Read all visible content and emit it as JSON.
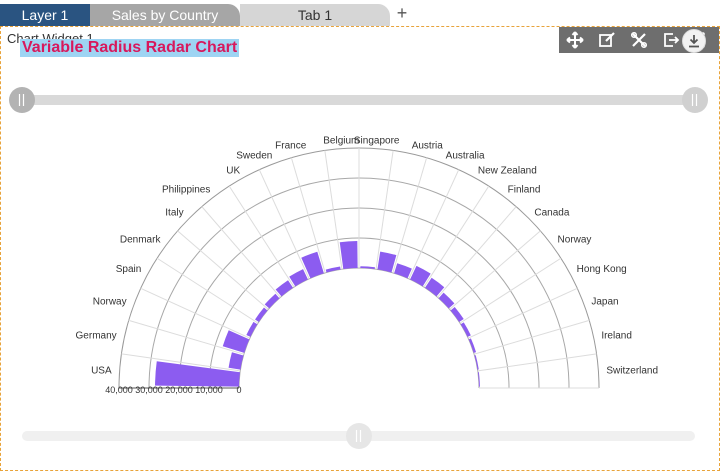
{
  "tabs": [
    {
      "label": "Layer 1"
    },
    {
      "label": "Sales by Country"
    },
    {
      "label": "Tab 1"
    }
  ],
  "add_tab_label": "+",
  "widget": {
    "title": "Chart Widget 1",
    "toolbar_icons": [
      "move-icon",
      "edit-icon",
      "settings-icon",
      "export-icon",
      "more-icon"
    ],
    "download_icon": "download-icon"
  },
  "colors": {
    "accent_bar": "#8c5cf0",
    "title_text": "#d8185c",
    "title_highlight": "#9ed4f3",
    "layer_tab": "#2a5481"
  },
  "chart_data": {
    "type": "bar",
    "title": "Variable Radius Radar Chart",
    "layout": "semi-circular radial bar chart",
    "categories": [
      "USA",
      "Germany",
      "Norway",
      "Spain",
      "Denmark",
      "Italy",
      "Philippines",
      "UK",
      "Sweden",
      "France",
      "Belgium",
      "Singapore",
      "Austria",
      "Australia",
      "New Zealand",
      "Finland",
      "Canada",
      "Norway",
      "Hong Kong",
      "Japan",
      "Ireland",
      "Switzerland"
    ],
    "values": [
      28000,
      4000,
      7500,
      1500,
      1500,
      2000,
      3000,
      3800,
      7500,
      1000,
      9000,
      600,
      6000,
      3500,
      5000,
      4000,
      2500,
      1800,
      1200,
      800,
      400,
      300
    ],
    "axis_ticks": [
      "40,000",
      "30,000",
      "20,000",
      "10,000",
      "0"
    ],
    "ylim": [
      0,
      40000
    ],
    "grid": true
  }
}
